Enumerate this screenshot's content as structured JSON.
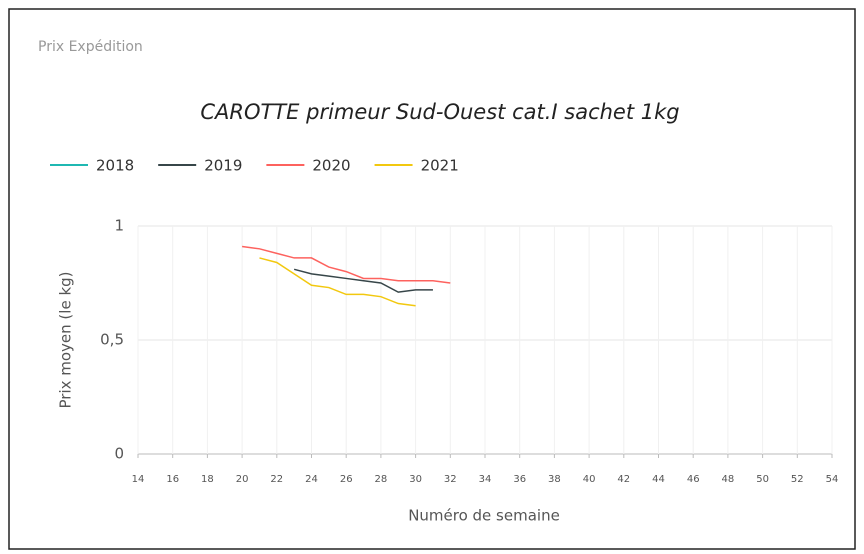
{
  "card_title": "Prix Expédition",
  "chart_data": {
    "type": "line",
    "title": "CAROTTE primeur Sud-Ouest cat.I sachet 1kg",
    "x_label": "Numéro de semaine",
    "y_label": "Prix moyen  (le kg)",
    "x": [
      20,
      21,
      22,
      23,
      24,
      25,
      26,
      27,
      28,
      29,
      30,
      31,
      32
    ],
    "series": [
      {
        "name": "2018",
        "color": "#1fb8b2",
        "values": [
          null,
          null,
          null,
          null,
          null,
          null,
          null,
          null,
          null,
          null,
          null,
          null,
          null
        ]
      },
      {
        "name": "2019",
        "color": "#374649",
        "values": [
          null,
          null,
          null,
          0.81,
          0.79,
          0.78,
          0.77,
          0.76,
          0.75,
          0.71,
          0.72,
          0.72,
          null
        ]
      },
      {
        "name": "2020",
        "color": "#fd625e",
        "values": [
          0.91,
          0.9,
          0.88,
          0.86,
          0.86,
          0.82,
          0.8,
          0.77,
          0.77,
          0.76,
          0.76,
          0.76,
          0.75
        ]
      },
      {
        "name": "2021",
        "color": "#f2c80f",
        "values": [
          null,
          0.86,
          0.84,
          0.79,
          0.74,
          0.73,
          0.7,
          0.7,
          0.69,
          0.66,
          0.65,
          null,
          null
        ]
      }
    ],
    "xlim": [
      14,
      54
    ],
    "xticks": [
      14,
      16,
      18,
      20,
      22,
      24,
      26,
      28,
      30,
      32,
      34,
      36,
      38,
      40,
      42,
      44,
      46,
      48,
      50,
      52,
      54
    ],
    "ylim": [
      0,
      1
    ],
    "yticks": [
      0,
      {
        "value": 0.5,
        "label": "0,5"
      },
      1
    ],
    "grid": true,
    "legend": "top-left"
  }
}
